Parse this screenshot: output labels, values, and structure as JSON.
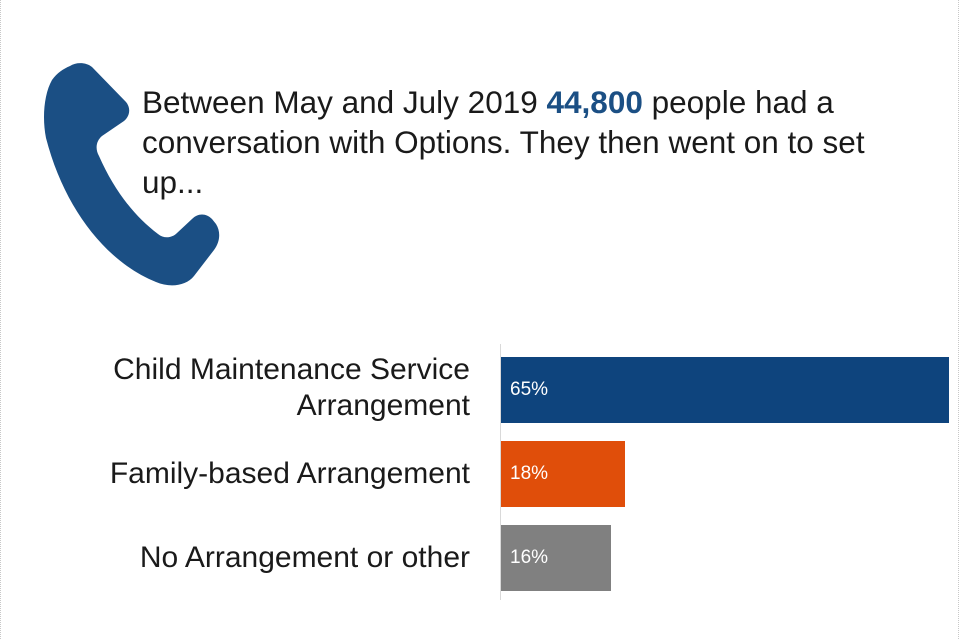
{
  "intro": {
    "before": "Between May and July 2019 ",
    "highlight": "44,800",
    "after": " people had a conversation with Options. They then went on to set up..."
  },
  "chart_data": {
    "type": "bar",
    "orientation": "horizontal",
    "categories": [
      "Child Maintenance Service Arrangement",
      "Family-based Arrangement",
      "No Arrangement or other"
    ],
    "values": [
      65,
      18,
      16
    ],
    "value_labels": [
      "65%",
      "18%",
      "16%"
    ],
    "colors": [
      "#0e447d",
      "#e04e0a",
      "#808080"
    ],
    "xlim": [
      0,
      65
    ]
  }
}
